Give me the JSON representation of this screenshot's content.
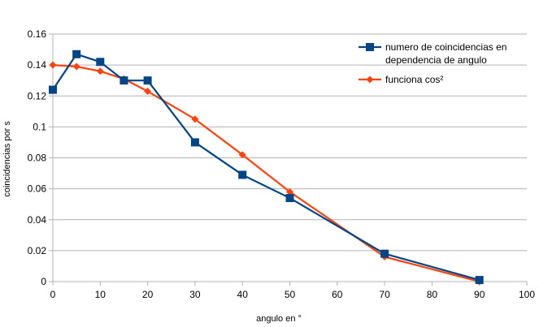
{
  "chart_data": {
    "type": "line",
    "xlabel": "angulo en °",
    "ylabel": "coincidencias por s",
    "xlim": [
      0,
      100
    ],
    "ylim": [
      0,
      0.16
    ],
    "xticks": [
      0,
      10,
      20,
      30,
      40,
      50,
      60,
      70,
      80,
      90,
      100
    ],
    "yticks": [
      0,
      0.02,
      0.04,
      0.06,
      0.08,
      0.1,
      0.12,
      0.14,
      0.16
    ],
    "ytick_labels": [
      "0",
      "0.02",
      "0.04",
      "0.06",
      "0.08",
      "0.1",
      "0.12",
      "0.14",
      "0.16"
    ],
    "xtick_labels": [
      "0",
      "10",
      "20",
      "30",
      "40",
      "50",
      "60",
      "70",
      "80",
      "90",
      "100"
    ],
    "grid": "horizontal",
    "legend_position": "top-right",
    "series": [
      {
        "name": "numero de coincidencias en dependencia de angulo",
        "legend_lines": [
          "numero de coincidencias en",
          "dependencia de angulo"
        ],
        "color": "#004586",
        "marker": "square",
        "x": [
          0,
          5,
          10,
          15,
          20,
          30,
          40,
          50,
          70,
          90
        ],
        "y": [
          0.124,
          0.147,
          0.142,
          0.13,
          0.13,
          0.09,
          0.069,
          0.054,
          0.018,
          0.001
        ]
      },
      {
        "name": "funciona cos²",
        "legend_lines": [
          "funciona cos²"
        ],
        "color": "#ff420e",
        "marker": "diamond",
        "x": [
          0,
          5,
          10,
          15,
          20,
          30,
          40,
          50,
          70,
          90
        ],
        "y": [
          0.14,
          0.139,
          0.136,
          0.131,
          0.123,
          0.105,
          0.082,
          0.058,
          0.016,
          0.0
        ]
      }
    ]
  }
}
